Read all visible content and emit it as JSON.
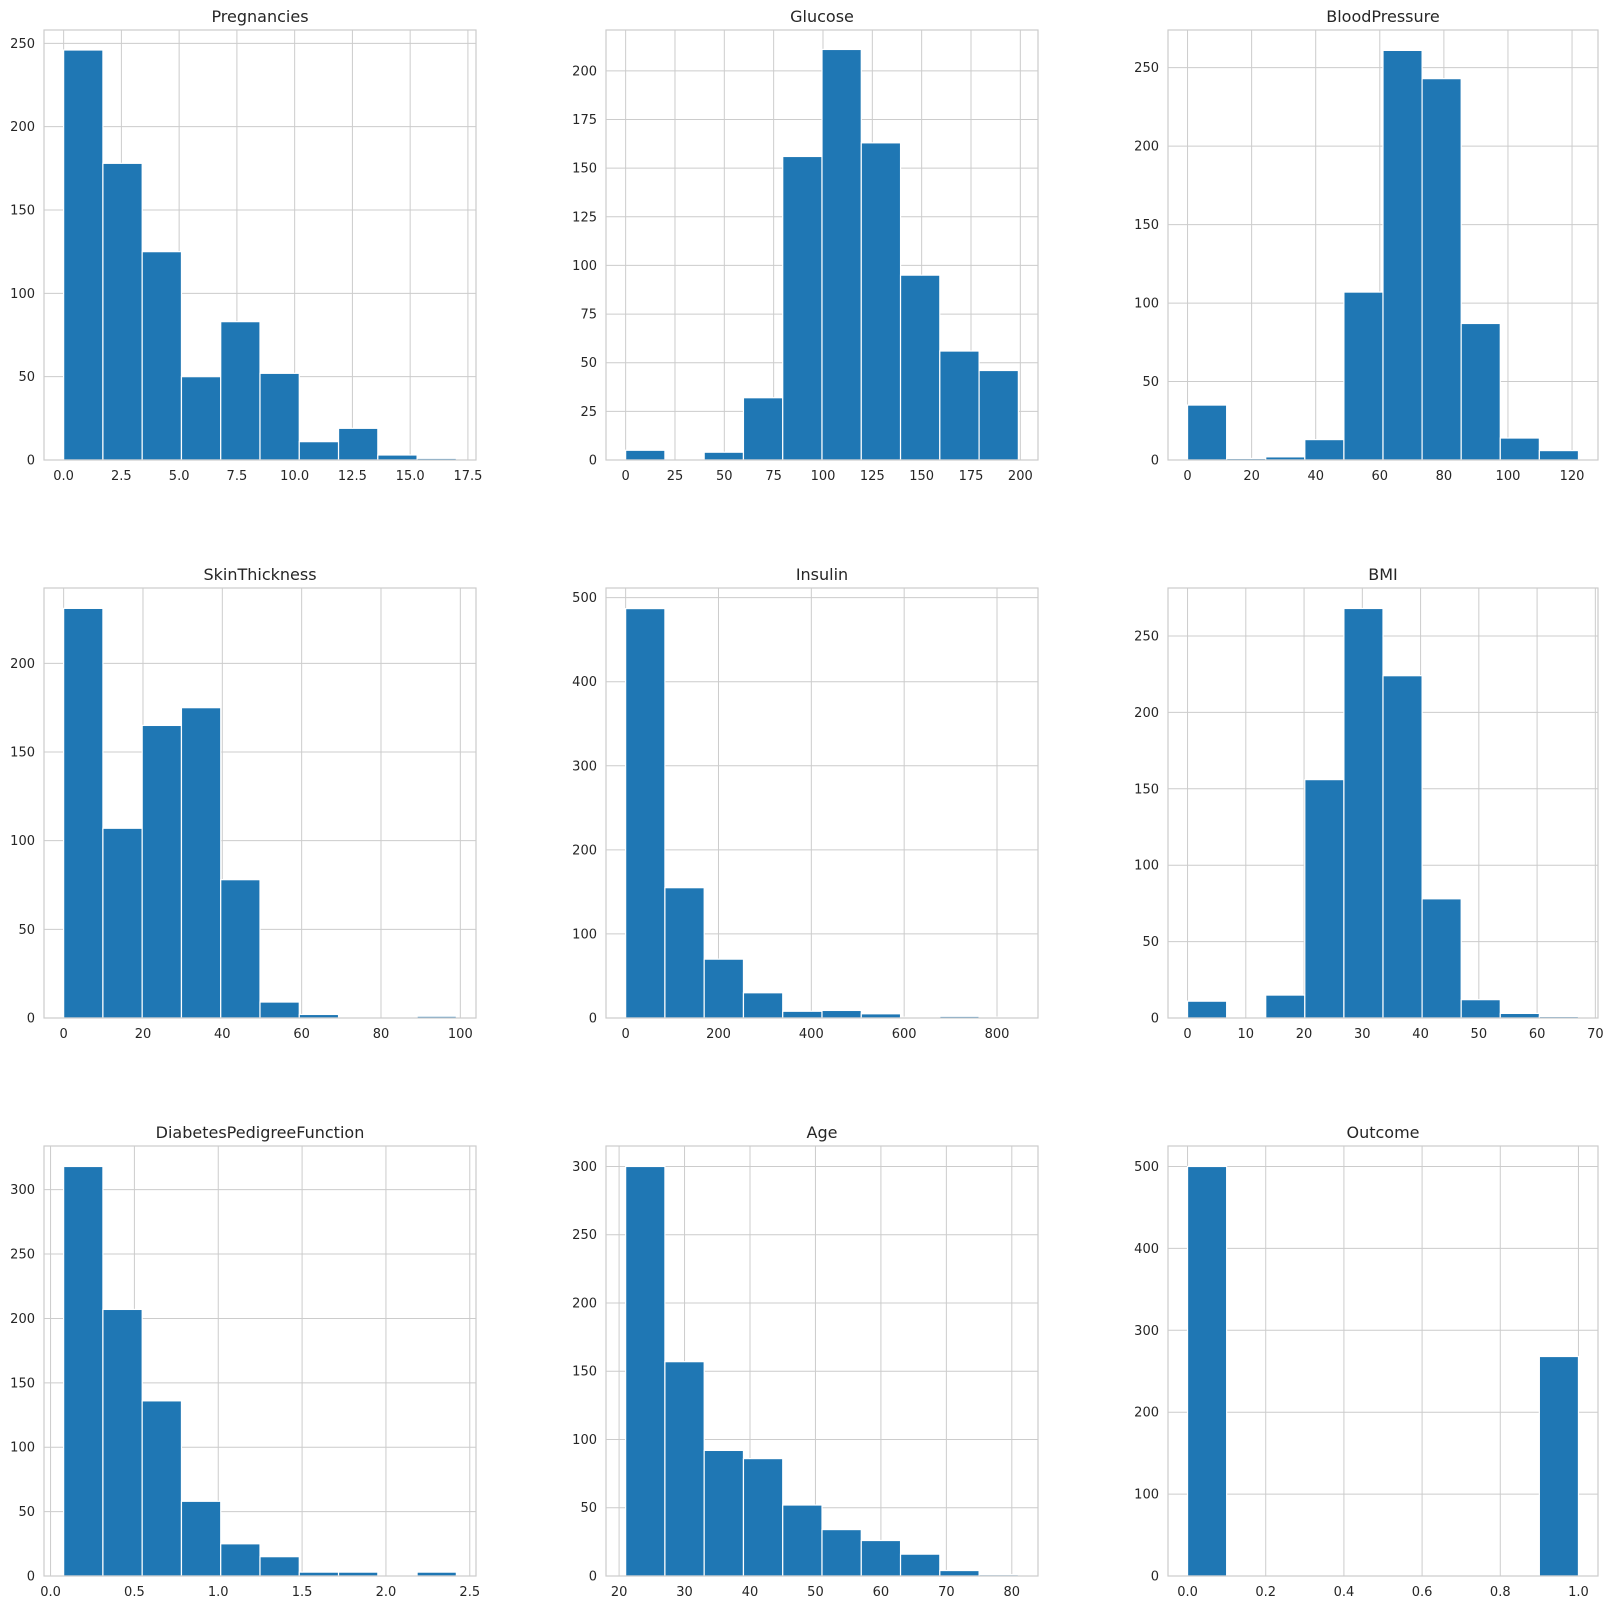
{
  "style": {
    "bar_color": "#1f77b4",
    "bar_edge_color": "#ffffff",
    "grid_color": "#cccccc",
    "axes_edge_color": "#cccccc",
    "background": "#ffffff"
  },
  "chart_data": [
    {
      "type": "bar",
      "title": "Pregnancies",
      "bin_edges": [
        0,
        1.7,
        3.4,
        5.1,
        6.8,
        8.5,
        10.2,
        11.9,
        13.6,
        15.3,
        17
      ],
      "values": [
        246,
        178,
        125,
        50,
        83,
        52,
        11,
        19,
        3,
        1
      ],
      "xlim": [
        -0.85,
        17.85
      ],
      "ylim": [
        0,
        258
      ],
      "xticks": [
        0,
        2.5,
        5,
        7.5,
        10,
        12.5,
        15,
        17.5
      ],
      "xtick_labels": [
        "0.0",
        "2.5",
        "5.0",
        "7.5",
        "10.0",
        "12.5",
        "15.0",
        "17.5"
      ],
      "yticks": [
        0,
        50,
        100,
        150,
        200,
        250
      ],
      "ytick_labels": [
        "0",
        "50",
        "100",
        "150",
        "200",
        "250"
      ],
      "grid": true
    },
    {
      "type": "bar",
      "title": "Glucose",
      "bin_edges": [
        0,
        19.9,
        39.8,
        59.7,
        79.6,
        99.5,
        119.4,
        139.3,
        159.2,
        179.1,
        199
      ],
      "values": [
        5,
        0,
        4,
        32,
        156,
        211,
        163,
        95,
        56,
        46
      ],
      "xlim": [
        -9.95,
        208.95
      ],
      "ylim": [
        0,
        221
      ],
      "xticks": [
        0,
        25,
        50,
        75,
        100,
        125,
        150,
        175,
        200
      ],
      "xtick_labels": [
        "0",
        "25",
        "50",
        "75",
        "100",
        "125",
        "150",
        "175",
        "200"
      ],
      "yticks": [
        0,
        25,
        50,
        75,
        100,
        125,
        150,
        175,
        200
      ],
      "ytick_labels": [
        "0",
        "25",
        "50",
        "75",
        "100",
        "125",
        "150",
        "175",
        "200"
      ],
      "grid": true
    },
    {
      "type": "bar",
      "title": "BloodPressure",
      "bin_edges": [
        0,
        12.2,
        24.4,
        36.6,
        48.8,
        61,
        73.2,
        85.4,
        97.6,
        109.8,
        122
      ],
      "values": [
        35,
        1,
        2,
        13,
        107,
        261,
        243,
        87,
        14,
        6
      ],
      "xlim": [
        -6.1,
        128.1
      ],
      "ylim": [
        0,
        274
      ],
      "xticks": [
        0,
        20,
        40,
        60,
        80,
        100,
        120
      ],
      "xtick_labels": [
        "0",
        "20",
        "40",
        "60",
        "80",
        "100",
        "120"
      ],
      "yticks": [
        0,
        50,
        100,
        150,
        200,
        250
      ],
      "ytick_labels": [
        "0",
        "50",
        "100",
        "150",
        "200",
        "250"
      ],
      "grid": true
    },
    {
      "type": "bar",
      "title": "SkinThickness",
      "bin_edges": [
        0,
        9.9,
        19.8,
        29.7,
        39.6,
        49.5,
        59.4,
        69.3,
        79.2,
        89.1,
        99
      ],
      "values": [
        231,
        107,
        165,
        175,
        78,
        9,
        2,
        0,
        0,
        1
      ],
      "xlim": [
        -4.95,
        103.95
      ],
      "ylim": [
        0,
        242.5
      ],
      "xticks": [
        0,
        20,
        40,
        60,
        80,
        100
      ],
      "xtick_labels": [
        "0",
        "20",
        "40",
        "60",
        "80",
        "100"
      ],
      "yticks": [
        0,
        50,
        100,
        150,
        200
      ],
      "ytick_labels": [
        "0",
        "50",
        "100",
        "150",
        "200"
      ],
      "grid": true
    },
    {
      "type": "bar",
      "title": "Insulin",
      "bin_edges": [
        0,
        84.6,
        169.2,
        253.8,
        338.4,
        423,
        507.6,
        592.2,
        676.8,
        761.4,
        846
      ],
      "values": [
        487,
        155,
        70,
        30,
        8,
        9,
        5,
        1,
        2,
        1
      ],
      "xlim": [
        -42.3,
        888.3
      ],
      "ylim": [
        0,
        511.5
      ],
      "xticks": [
        0,
        200,
        400,
        600,
        800
      ],
      "xtick_labels": [
        "0",
        "200",
        "400",
        "600",
        "800"
      ],
      "yticks": [
        0,
        100,
        200,
        300,
        400,
        500
      ],
      "ytick_labels": [
        "0",
        "100",
        "200",
        "300",
        "400",
        "500"
      ],
      "grid": true
    },
    {
      "type": "bar",
      "title": "BMI",
      "bin_edges": [
        0,
        6.71,
        13.42,
        20.13,
        26.84,
        33.55,
        40.26,
        46.97,
        53.68,
        60.39,
        67.1
      ],
      "values": [
        11,
        0,
        15,
        156,
        268,
        224,
        78,
        12,
        3,
        1
      ],
      "xlim": [
        -3.355,
        70.455
      ],
      "ylim": [
        0,
        281.4
      ],
      "xticks": [
        0,
        10,
        20,
        30,
        40,
        50,
        60,
        70
      ],
      "xtick_labels": [
        "0",
        "10",
        "20",
        "30",
        "40",
        "50",
        "60",
        "70"
      ],
      "yticks": [
        0,
        50,
        100,
        150,
        200,
        250
      ],
      "ytick_labels": [
        "0",
        "50",
        "100",
        "150",
        "200",
        "250"
      ],
      "grid": true
    },
    {
      "type": "bar",
      "title": "DiabetesPedigreeFunction",
      "bin_edges": [
        0.078,
        0.3122,
        0.5464,
        0.7806,
        1.0148,
        1.249,
        1.4832,
        1.7174,
        1.9516,
        2.1858,
        2.42
      ],
      "values": [
        318,
        207,
        136,
        58,
        25,
        15,
        3,
        3,
        0,
        3
      ],
      "xlim": [
        -0.0391,
        2.5371
      ],
      "ylim": [
        0,
        333.9
      ],
      "xticks": [
        0,
        0.5,
        1,
        1.5,
        2,
        2.5
      ],
      "xtick_labels": [
        "0.0",
        "0.5",
        "1.0",
        "1.5",
        "2.0",
        "2.5"
      ],
      "yticks": [
        0,
        50,
        100,
        150,
        200,
        250,
        300
      ],
      "ytick_labels": [
        "0",
        "50",
        "100",
        "150",
        "200",
        "250",
        "300"
      ],
      "grid": true
    },
    {
      "type": "bar",
      "title": "Age",
      "bin_edges": [
        21,
        27,
        33,
        39,
        45,
        51,
        57,
        63,
        69,
        75,
        81
      ],
      "values": [
        300,
        157,
        92,
        86,
        52,
        34,
        26,
        16,
        4,
        1
      ],
      "xlim": [
        18,
        84
      ],
      "ylim": [
        0,
        315
      ],
      "xticks": [
        20,
        30,
        40,
        50,
        60,
        70,
        80
      ],
      "xtick_labels": [
        "20",
        "30",
        "40",
        "50",
        "60",
        "70",
        "80"
      ],
      "yticks": [
        0,
        50,
        100,
        150,
        200,
        250,
        300
      ],
      "ytick_labels": [
        "0",
        "50",
        "100",
        "150",
        "200",
        "250",
        "300"
      ],
      "grid": true
    },
    {
      "type": "bar",
      "title": "Outcome",
      "bin_edges": [
        0,
        0.1,
        0.2,
        0.3,
        0.4,
        0.5,
        0.6,
        0.7,
        0.8,
        0.9,
        1.0
      ],
      "values": [
        500,
        0,
        0,
        0,
        0,
        0,
        0,
        0,
        0,
        268
      ],
      "xlim": [
        -0.05,
        1.05
      ],
      "ylim": [
        0,
        525
      ],
      "xticks": [
        0,
        0.2,
        0.4,
        0.6,
        0.8,
        1.0
      ],
      "xtick_labels": [
        "0.0",
        "0.2",
        "0.4",
        "0.6",
        "0.8",
        "1.0"
      ],
      "yticks": [
        0,
        100,
        200,
        300,
        400,
        500
      ],
      "ytick_labels": [
        "0",
        "100",
        "200",
        "300",
        "400",
        "500"
      ],
      "grid": true
    }
  ]
}
